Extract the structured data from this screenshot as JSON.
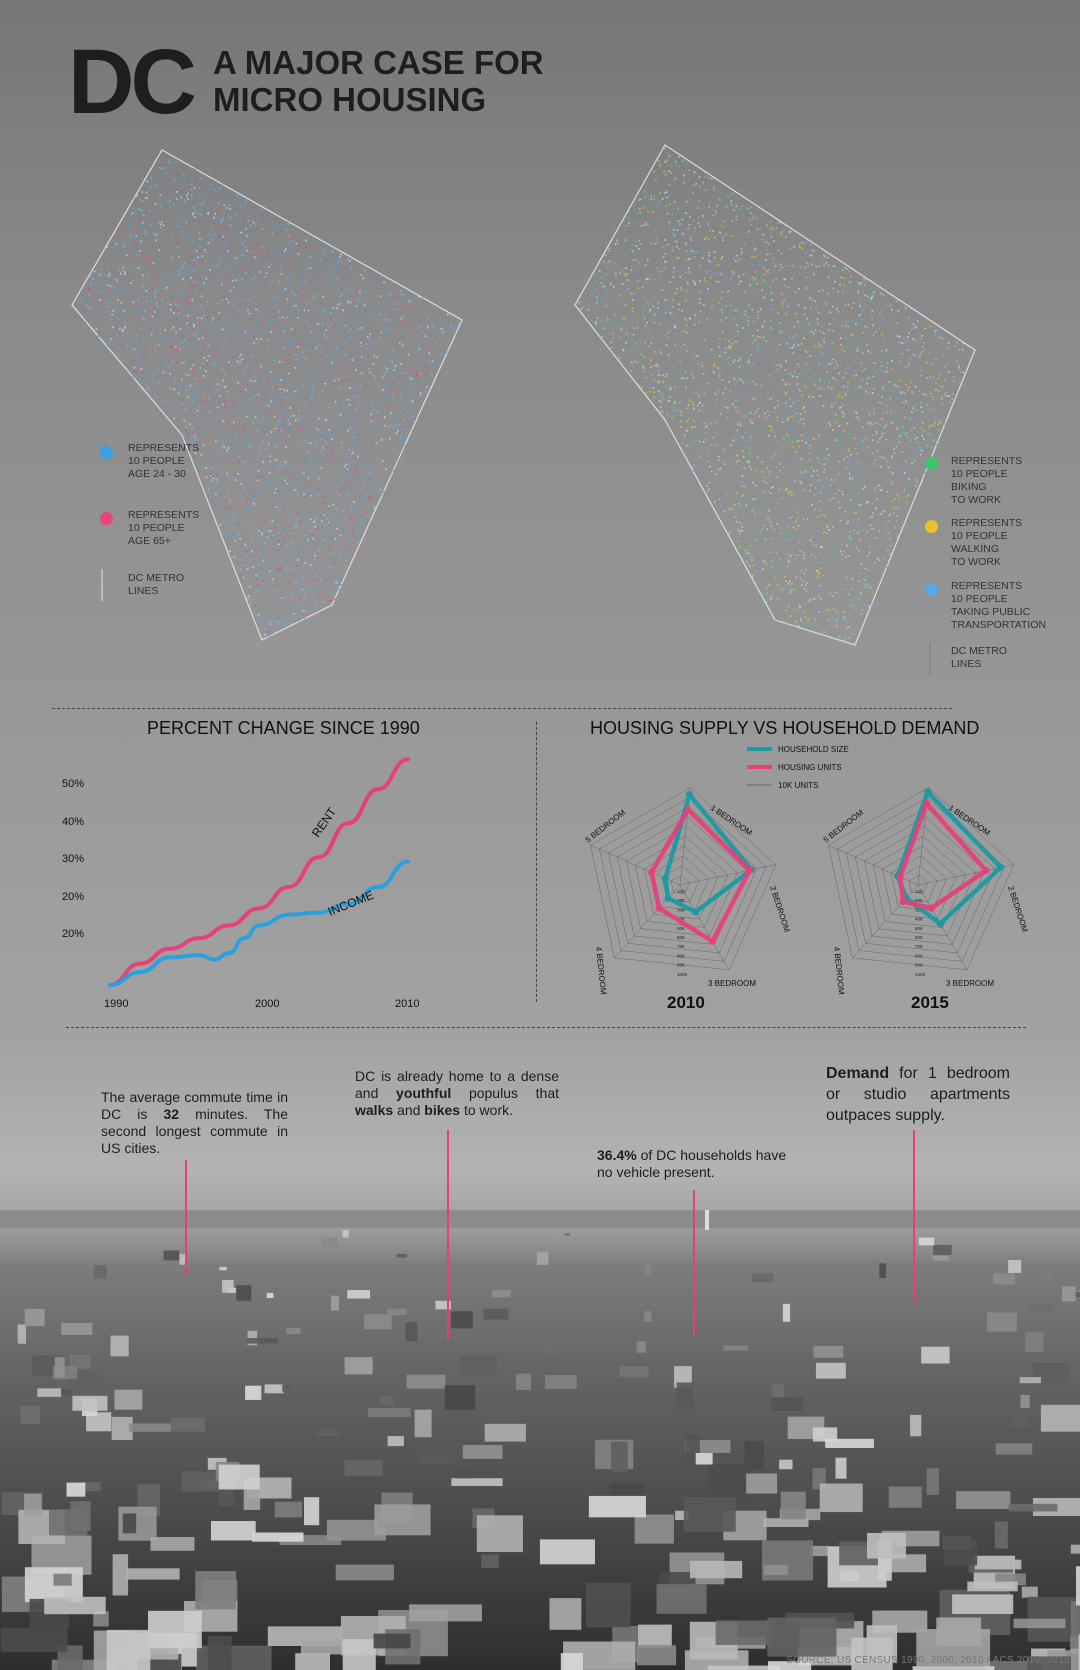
{
  "header": {
    "dc": "DC",
    "subtitle": "A MAJOR CASE FOR\nMICRO HOUSING"
  },
  "map_left_legend": [
    {
      "color": "#3b9fe0",
      "text": "REPRESENTS\n10 PEOPLE\nAGE 24 - 30"
    },
    {
      "color": "#e8457f",
      "text": "REPRESENTS\n10 PEOPLE\nAGE 65+"
    },
    {
      "text": "DC METRO\nLINES"
    }
  ],
  "map_right_legend": [
    {
      "color": "#3ec46a",
      "text": "REPRESENTS\n10 PEOPLE\nBIKING\nTO WORK"
    },
    {
      "color": "#e8c22a",
      "text": "REPRESENTS\n10 PEOPLE\nWALKING\nTO WORK"
    },
    {
      "color": "#5aa7e6",
      "text": "REPRESENTS\n10 PEOPLE\nTAKING PUBLIC\nTRANSPORTATION"
    },
    {
      "text": "DC METRO\nLINES"
    }
  ],
  "chart_data": [
    {
      "type": "line",
      "title": "PERCENT CHANGE SINCE 1990",
      "x_ticks": [
        "1990",
        "2000",
        "2010"
      ],
      "y_ticks": [
        "50%",
        "40%",
        "30%",
        "20%",
        "20%"
      ],
      "series": [
        {
          "name": "RENT",
          "color": "#e5407a",
          "x": [
            1990,
            1992,
            1994,
            1996,
            1998,
            2000,
            2002,
            2004,
            2006,
            2008,
            2010
          ],
          "y": [
            0,
            5,
            8.5,
            11,
            14,
            18,
            23,
            30,
            38,
            46,
            53
          ]
        },
        {
          "name": "INCOME",
          "color": "#2aa0de",
          "x": [
            1990,
            1992,
            1994,
            1996,
            1997,
            1998,
            1999,
            2000,
            2002,
            2004,
            2006,
            2008,
            2010
          ],
          "y": [
            0,
            3,
            6.5,
            7,
            6,
            7.5,
            11,
            14,
            16.5,
            17,
            19,
            23,
            29
          ]
        }
      ]
    },
    {
      "type": "radar",
      "title": "HOUSING SUPPLY VS HOUSEHOLD DEMAND",
      "legend": [
        {
          "name": "HOUSEHOLD SIZE",
          "color": "#1a9aa4"
        },
        {
          "name": "HOUSING UNITS",
          "color": "#e5407a"
        },
        {
          "name": "10K UNITS",
          "color": "#555"
        }
      ],
      "axes": [
        "1 BEDROOM",
        "2 BEDROOM",
        "3 BEDROOM",
        "4 BEDROOM",
        "5 BEDROOM"
      ],
      "ring_labels": [
        "10K",
        "20K",
        "30K",
        "40K",
        "50K",
        "60K",
        "70K",
        "80K",
        "90K",
        "100K"
      ],
      "charts": [
        {
          "year": "2010",
          "household_size": [
            102,
            82,
            35,
            20,
            18
          ],
          "housing_units": [
            85,
            80,
            73,
            35,
            35
          ]
        },
        {
          "year": "2015",
          "household_size": [
            105,
            95,
            50,
            20,
            25
          ],
          "housing_units": [
            92,
            78,
            30,
            25,
            22
          ]
        }
      ]
    }
  ],
  "callouts": {
    "commute": "The average commute time in DC is <b>32</b> minutes. The second longest commute in US cities.",
    "youthful": "DC is already home to a dense and <b>youthful</b> populus that <b>walks</b> and <b>bikes</b> to work.",
    "vehicle": "<b>36.4%</b> of DC households have no vehicle present.",
    "demand": "<b>Demand</b> for 1 bedroom or studio apartments outpaces supply."
  },
  "source": "SOURCE: US CENSUS 1990, 2000, 2010 / ACS 2010, 2015"
}
